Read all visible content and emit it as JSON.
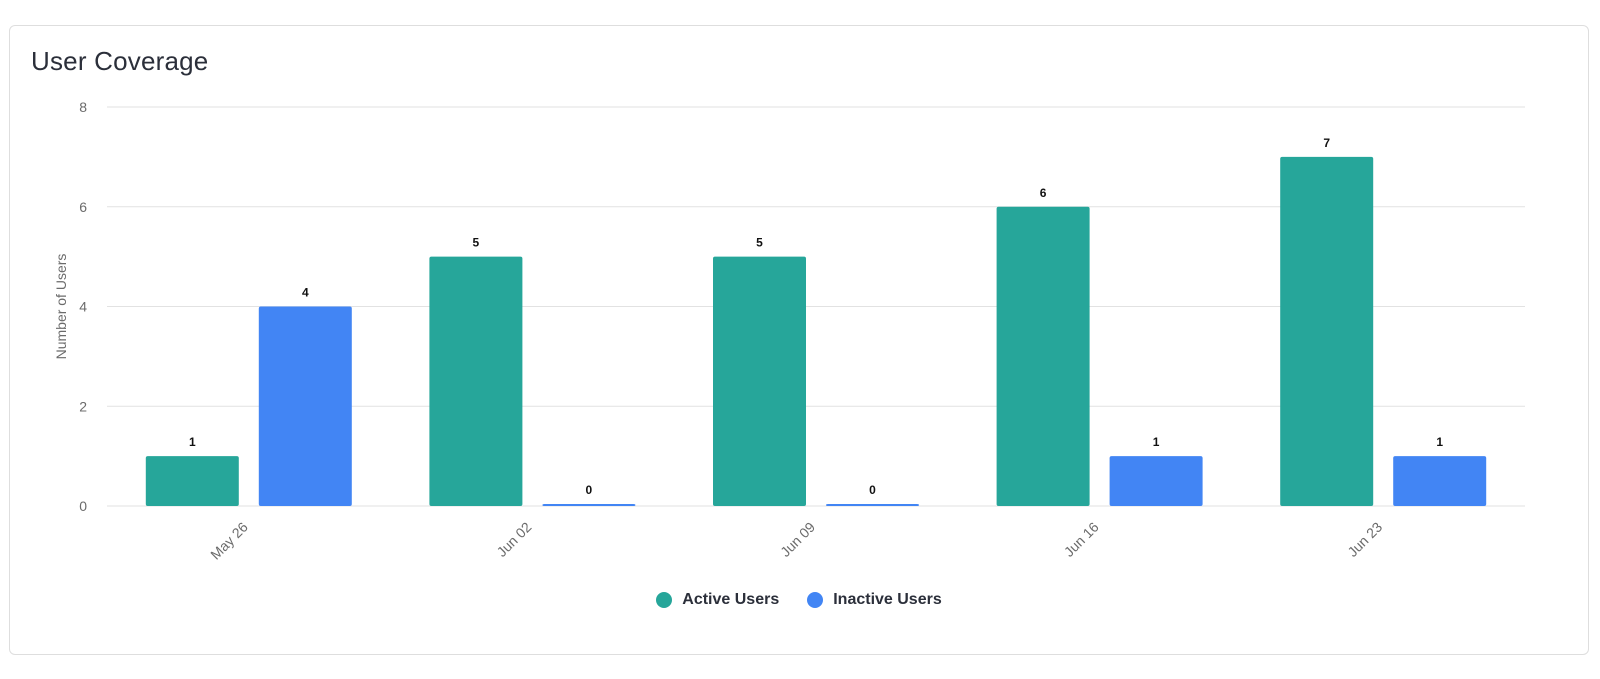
{
  "card": {
    "title": "User Coverage"
  },
  "colors": {
    "active": "#26a69a",
    "inactive": "#4285f4",
    "grid": "#e2e2e2",
    "tick_text": "#6b6b6b",
    "data_label": "#111111"
  },
  "chart_data": {
    "type": "bar",
    "title": "User Coverage",
    "xlabel": "",
    "ylabel": "Number of Users",
    "ylim": [
      0,
      8
    ],
    "yticks": [
      0,
      2,
      4,
      6,
      8
    ],
    "categories": [
      "May 26",
      "Jun 02",
      "Jun 09",
      "Jun 16",
      "Jun 23"
    ],
    "series": [
      {
        "name": "Active Users",
        "values": [
          1,
          5,
          5,
          6,
          7
        ]
      },
      {
        "name": "Inactive Users",
        "values": [
          4,
          0,
          0,
          1,
          1
        ]
      }
    ],
    "grid": true,
    "data_labels": true,
    "legend_position": "bottom-center"
  }
}
